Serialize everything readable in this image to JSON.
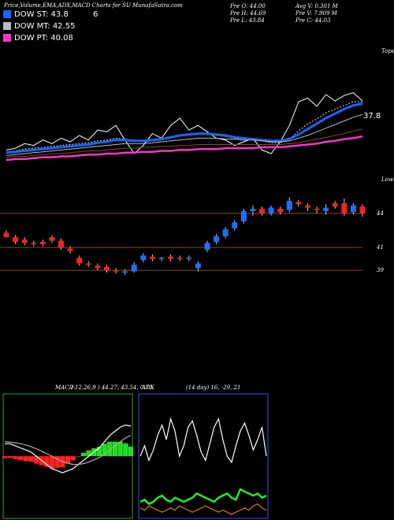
{
  "header": {
    "title": "Price,Volume,EMA,ADX,MACD Charts for SU MunafaSutra.com",
    "number": "6",
    "info": [
      "Pre O: 44.00",
      "Avg V: 0.301 M",
      "Pre H: 44.69",
      "Pre V: 7.909 M",
      "Pre L: 43.84",
      "Pre C: 44.03"
    ]
  },
  "chart_data": [
    {
      "type": "line",
      "ylim": [
        33,
        46
      ],
      "annotations": [
        "37.8",
        "Tops"
      ],
      "series": [
        {
          "color": "#ffffff",
          "values": [
            34.7,
            34.9,
            35.4,
            35.2,
            35.8,
            35.4,
            36.0,
            35.6,
            36.3,
            35.8,
            36.9,
            36.7,
            37.4,
            35.8,
            34.3,
            35.2,
            36.5,
            36.0,
            37.4,
            38.2,
            36.9,
            37.4,
            36.7,
            36.0,
            35.8,
            35.2,
            35.6,
            36.0,
            34.7,
            34.3,
            35.6,
            37.4,
            40.0,
            40.4,
            39.5,
            40.8,
            40.1,
            40.7,
            41.0,
            40.1
          ]
        },
        {
          "color": "#dddddd",
          "dashed": true,
          "values": [
            34.5,
            34.6,
            34.8,
            34.9,
            35.0,
            35.1,
            35.2,
            35.3,
            35.4,
            35.5,
            35.7,
            35.8,
            36.0,
            35.9,
            35.7,
            35.6,
            35.7,
            35.8,
            36.0,
            36.3,
            36.4,
            36.5,
            36.4,
            36.3,
            36.2,
            36.0,
            35.9,
            35.9,
            35.7,
            35.5,
            35.5,
            35.9,
            36.8,
            37.6,
            38.1,
            38.8,
            39.2,
            39.6,
            40.0,
            40.0
          ]
        },
        {
          "name": "DOW ST: 43.8",
          "color": "#1565ff",
          "values": [
            34.4,
            34.5,
            34.6,
            34.7,
            34.8,
            34.9,
            35.0,
            35.1,
            35.2,
            35.3,
            35.5,
            35.6,
            35.8,
            35.8,
            35.7,
            35.7,
            35.8,
            35.9,
            36.1,
            36.3,
            36.4,
            36.5,
            36.5,
            36.4,
            36.3,
            36.1,
            36.0,
            35.9,
            35.8,
            35.7,
            35.7,
            35.9,
            36.4,
            37.0,
            37.6,
            38.2,
            38.7,
            39.2,
            39.6,
            39.8
          ]
        },
        {
          "name": "DOW MT: 42.55",
          "color": "#bbbbbb",
          "values": [
            34.1,
            34.2,
            34.3,
            34.4,
            34.5,
            34.6,
            34.7,
            34.8,
            34.9,
            35.0,
            35.1,
            35.2,
            35.3,
            35.4,
            35.4,
            35.4,
            35.5,
            35.6,
            35.7,
            35.8,
            35.9,
            36.0,
            36.0,
            36.0,
            35.9,
            35.9,
            35.8,
            35.8,
            35.7,
            35.6,
            35.6,
            35.7,
            36.0,
            36.3,
            36.7,
            37.1,
            37.5,
            37.9,
            38.3,
            38.6
          ]
        },
        {
          "color": "#8b4a1a",
          "values": [
            33.9,
            34.0,
            34.0,
            34.1,
            34.2,
            34.3,
            34.3,
            34.4,
            34.5,
            34.6,
            34.6,
            34.7,
            34.8,
            34.9,
            34.9,
            35.0,
            35.0,
            35.1,
            35.1,
            35.2,
            35.2,
            35.3,
            35.3,
            35.3,
            35.3,
            35.3,
            35.3,
            35.3,
            35.3,
            35.3,
            35.3,
            35.4,
            35.5,
            35.7,
            35.9,
            36.1,
            36.3,
            36.5,
            36.8,
            37.0
          ]
        },
        {
          "name": "DOW PT: 40.08",
          "color": "#ff33cc",
          "values": [
            33.6,
            33.7,
            33.7,
            33.8,
            33.9,
            33.9,
            34.0,
            34.0,
            34.1,
            34.2,
            34.2,
            34.3,
            34.3,
            34.4,
            34.4,
            34.5,
            34.5,
            34.6,
            34.6,
            34.7,
            34.7,
            34.8,
            34.8,
            34.8,
            34.9,
            34.9,
            34.9,
            34.9,
            35.0,
            35.0,
            35.0,
            35.1,
            35.2,
            35.3,
            35.4,
            35.6,
            35.7,
            35.9,
            36.0,
            36.2
          ]
        }
      ]
    },
    {
      "type": "candlestick",
      "ylim": [
        37,
        48
      ],
      "yticks": [
        44,
        41,
        39
      ],
      "annotations": [
        "Lows"
      ],
      "up_color": "#1e6fff",
      "down_color": "#ff2020",
      "level_color": "#8b4a1a",
      "open": [
        42.3,
        41.9,
        41.7,
        41.4,
        41.5,
        41.9,
        41.6,
        40.9,
        40.1,
        39.6,
        39.4,
        39.3,
        39.0,
        38.8,
        38.9,
        39.9,
        40.2,
        40.0,
        40.2,
        40.1,
        40.0,
        39.2,
        40.8,
        41.5,
        42.0,
        42.7,
        43.3,
        44.2,
        44.4,
        44.0,
        44.4,
        44.3,
        45.0,
        44.7,
        44.4,
        44.2,
        44.9,
        44.9,
        44.1,
        44.6
      ],
      "high": [
        42.5,
        42.1,
        41.9,
        41.6,
        41.7,
        42.1,
        41.8,
        41.1,
        40.3,
        39.8,
        39.6,
        39.5,
        39.2,
        39.1,
        39.7,
        40.5,
        40.4,
        40.2,
        40.4,
        40.3,
        40.3,
        39.8,
        41.6,
        42.2,
        42.8,
        43.4,
        44.4,
        44.7,
        44.6,
        44.7,
        44.6,
        45.4,
        45.2,
        44.9,
        44.6,
        44.8,
        45.1,
        45.3,
        44.9,
        44.8
      ],
      "low": [
        42.0,
        41.3,
        41.2,
        41.1,
        41.1,
        41.4,
        40.8,
        40.5,
        39.4,
        39.3,
        39.0,
        38.8,
        38.7,
        38.6,
        38.8,
        39.7,
        39.8,
        39.8,
        39.8,
        39.8,
        39.8,
        38.9,
        40.6,
        41.3,
        41.8,
        42.5,
        43.1,
        43.8,
        43.8,
        43.8,
        43.9,
        44.1,
        44.6,
        44.2,
        44.0,
        43.9,
        44.4,
        43.8,
        43.9,
        43.7
      ],
      "close": [
        41.9,
        41.5,
        41.4,
        41.3,
        41.3,
        41.6,
        41.0,
        40.7,
        39.6,
        39.5,
        39.2,
        39.0,
        38.9,
        38.9,
        39.5,
        40.3,
        40.0,
        40.1,
        40.0,
        40.0,
        40.1,
        39.6,
        41.4,
        42.0,
        42.6,
        43.2,
        44.2,
        44.4,
        44.0,
        44.5,
        44.1,
        45.1,
        44.8,
        44.5,
        44.3,
        44.5,
        44.6,
        44.0,
        44.7,
        44.0
      ]
    },
    {
      "type": "macd",
      "title": "MACD:",
      "subtitle": "( 12,26,9 ) 44.27, 43.54, 0.73",
      "ylim": [
        -1.5,
        1.5
      ],
      "border": "#22aa22",
      "up_color": "#22dd22",
      "down_color": "#ff2020",
      "series": [
        {
          "color": "#ffffff",
          "values": [
            0.3,
            0.3,
            0.25,
            0.2,
            0.15,
            0.1,
            0.0,
            -0.1,
            -0.2,
            -0.3,
            -0.35,
            -0.4,
            -0.35,
            -0.3,
            -0.2,
            -0.1,
            0.0,
            0.1,
            0.2,
            0.35,
            0.5,
            0.6,
            0.7,
            0.75,
            0.73
          ]
        },
        {
          "color": "#aaaaaa",
          "values": [
            0.35,
            0.34,
            0.32,
            0.3,
            0.27,
            0.23,
            0.18,
            0.12,
            0.06,
            0.0,
            -0.07,
            -0.13,
            -0.17,
            -0.2,
            -0.2,
            -0.18,
            -0.14,
            -0.09,
            -0.03,
            0.05,
            0.15,
            0.25,
            0.35,
            0.44,
            0.5
          ]
        }
      ],
      "histogram": [
        -0.05,
        -0.04,
        -0.07,
        -0.1,
        -0.12,
        -0.13,
        -0.18,
        -0.22,
        -0.26,
        -0.3,
        -0.28,
        -0.27,
        -0.18,
        -0.1,
        0,
        0.08,
        0.14,
        0.19,
        0.23,
        0.3,
        0.35,
        0.35,
        0.35,
        0.31,
        0.23
      ]
    },
    {
      "type": "adx",
      "title": "ADX",
      "subtitle": "(14 day) 16, -29, 21",
      "ylim": [
        0,
        60
      ],
      "border": "#3050ff",
      "series": [
        {
          "color": "#ffffff",
          "values": [
            30,
            35,
            28,
            33,
            40,
            45,
            38,
            48,
            42,
            30,
            35,
            44,
            47,
            40,
            32,
            28,
            36,
            44,
            48,
            38,
            30,
            27,
            35,
            42,
            46,
            40,
            33,
            38,
            44,
            30
          ]
        },
        {
          "color": "#22ee22",
          "width": 2.5,
          "values": [
            8,
            9,
            7,
            8,
            10,
            11,
            9,
            8,
            10,
            9,
            8,
            9,
            10,
            12,
            11,
            10,
            9,
            8,
            10,
            11,
            12,
            10,
            9,
            14,
            13,
            12,
            11,
            12,
            10,
            11
          ]
        },
        {
          "color": "#e07a10",
          "values": [
            5,
            4,
            6,
            5,
            4,
            3,
            4,
            5,
            4,
            6,
            5,
            4,
            3,
            4,
            5,
            6,
            5,
            4,
            3,
            4,
            3,
            2,
            3,
            4,
            5,
            4,
            6,
            7,
            5,
            4
          ]
        }
      ]
    }
  ]
}
